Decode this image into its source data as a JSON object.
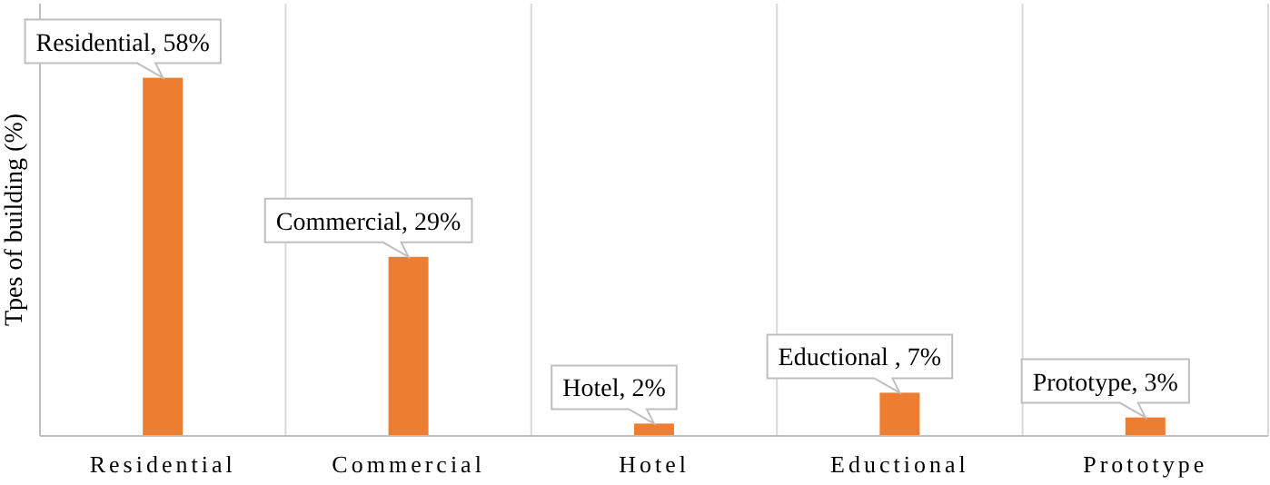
{
  "chart_data": {
    "type": "bar",
    "ylabel": "Tpes of building (%)",
    "categories": [
      "Residential",
      "Commercial",
      "Hotel",
      "Eductional",
      "Prototype"
    ],
    "values": [
      58,
      29,
      2,
      7,
      3
    ],
    "value_labels": [
      "Residential, 58%",
      "Commercial, 29%",
      "Hotel, 2%",
      "Eductional , 7%",
      "Prototype, 3%"
    ],
    "color": "#ed7d31",
    "ylim": [
      0,
      70
    ],
    "grid": "x"
  }
}
